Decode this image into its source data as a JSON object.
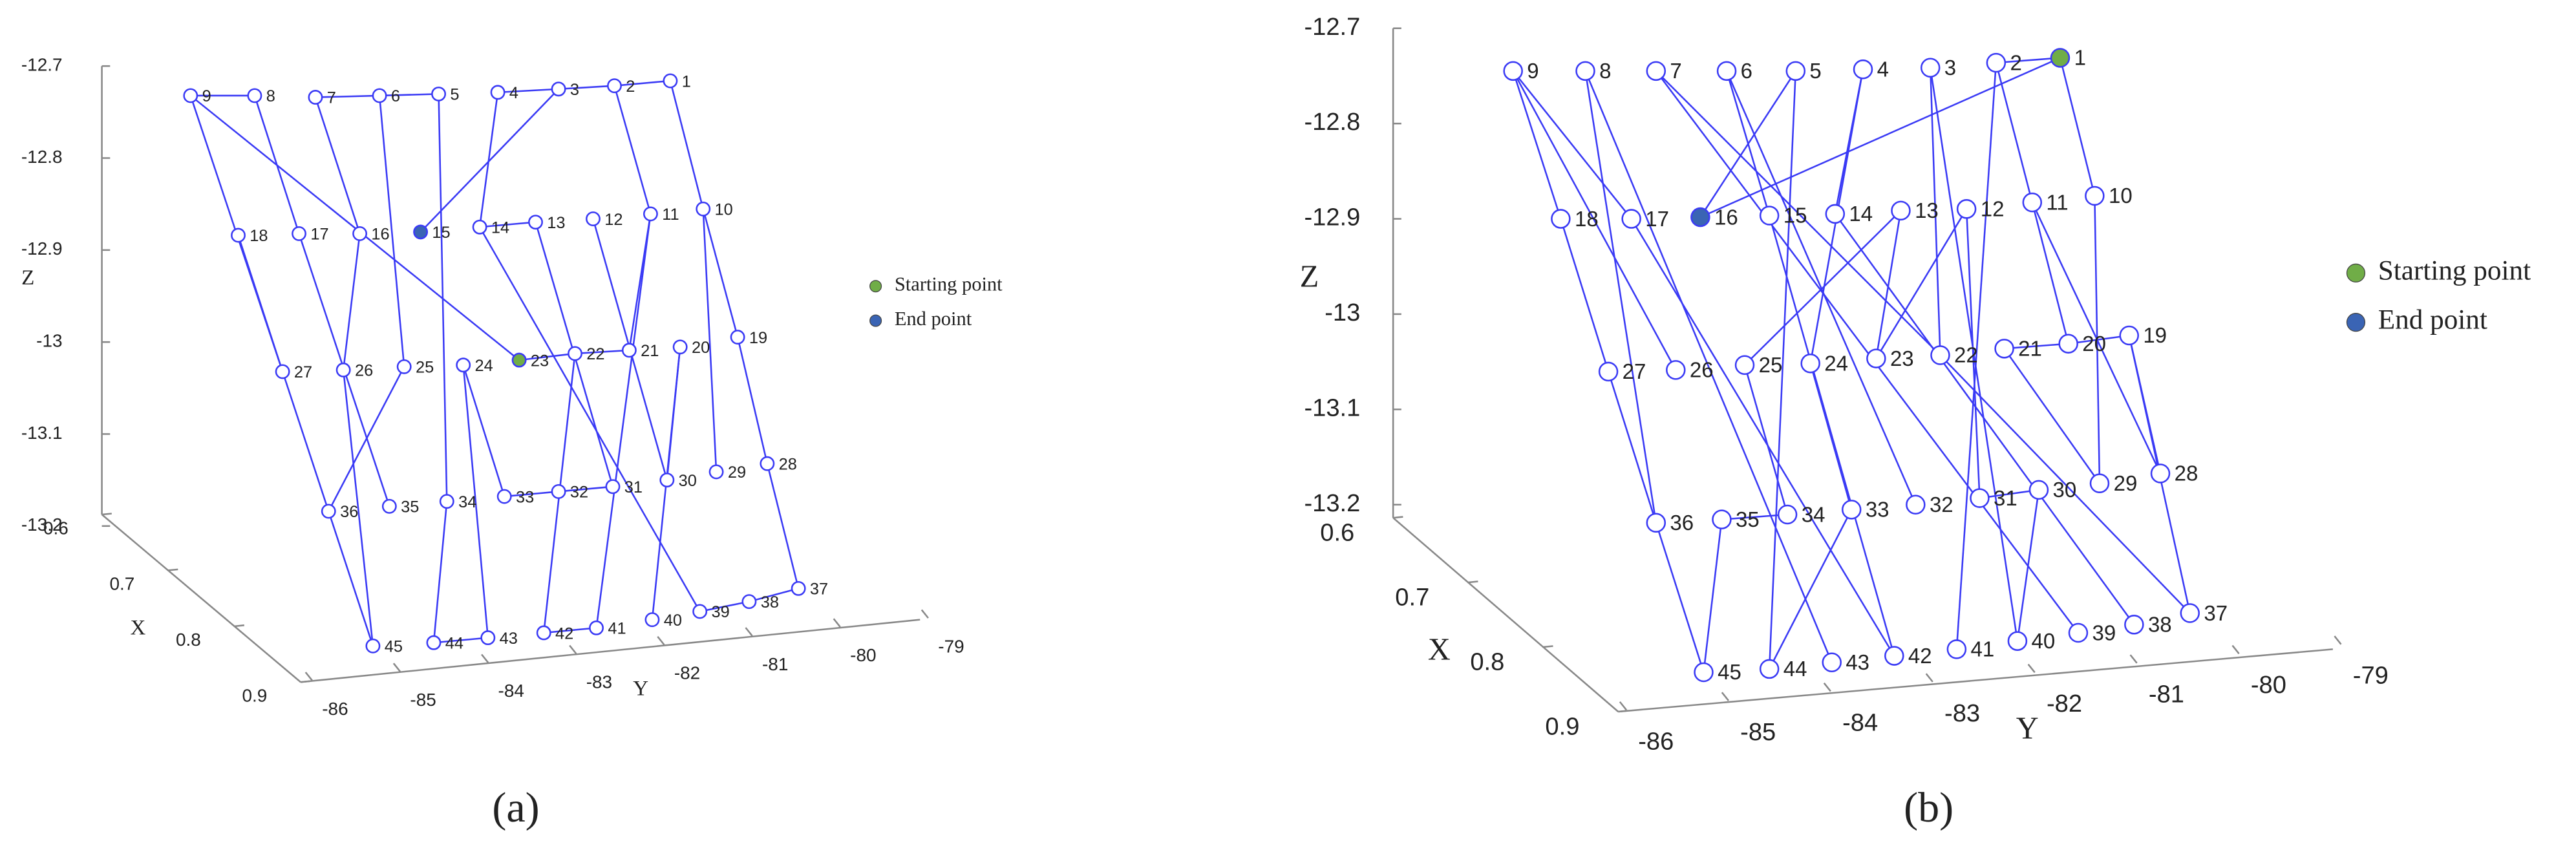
{
  "panels": [
    {
      "caption": "(a)",
      "zlabel": "Z",
      "xlabel": "X",
      "ylabel": "Y",
      "zticks": [
        -12.7,
        -12.8,
        -12.9,
        -13,
        -13.1,
        -13.2
      ],
      "xticks": [
        0.6,
        0.7,
        0.8,
        0.9
      ],
      "yticks": [
        -86,
        -85,
        -84,
        -83,
        -82,
        -81,
        -80,
        -79
      ],
      "point_color": "#3a3af5",
      "legend": [
        {
          "label": "Starting point",
          "color": "#70ad47"
        },
        {
          "label": "End point",
          "color": "#3a64b4"
        }
      ],
      "points": [
        1,
        2,
        3,
        4,
        5,
        6,
        7,
        8,
        9,
        10,
        11,
        12,
        13,
        14,
        15,
        16,
        17,
        18,
        19,
        20,
        21,
        22,
        23,
        24,
        25,
        26,
        27,
        28,
        29,
        30,
        31,
        32,
        33,
        34,
        35,
        36,
        37,
        38,
        39,
        40,
        41,
        42,
        43,
        44,
        45
      ]
    },
    {
      "caption": "(b)",
      "zlabel": "Z",
      "xlabel": "X",
      "ylabel": "Y",
      "zticks": [
        -12.7,
        -12.8,
        -12.9,
        -13,
        -13.1,
        -13.2
      ],
      "xticks": [
        0.6,
        0.7,
        0.8,
        0.9
      ],
      "yticks": [
        -86,
        -85,
        -84,
        -83,
        -82,
        -81,
        -80,
        -79
      ],
      "point_color": "#3a3af5",
      "legend": [
        {
          "label": "Starting point",
          "color": "#70ad47"
        },
        {
          "label": "End point",
          "color": "#3a64b4"
        }
      ],
      "points": [
        1,
        2,
        3,
        4,
        5,
        6,
        7,
        8,
        9,
        10,
        11,
        12,
        13,
        14,
        15,
        16,
        17,
        18,
        19,
        20,
        21,
        22,
        23,
        24,
        25,
        26,
        27,
        28,
        29,
        30,
        31,
        32,
        33,
        34,
        35,
        36,
        37,
        38,
        39,
        40,
        41,
        42,
        43,
        44,
        45
      ]
    }
  ]
}
